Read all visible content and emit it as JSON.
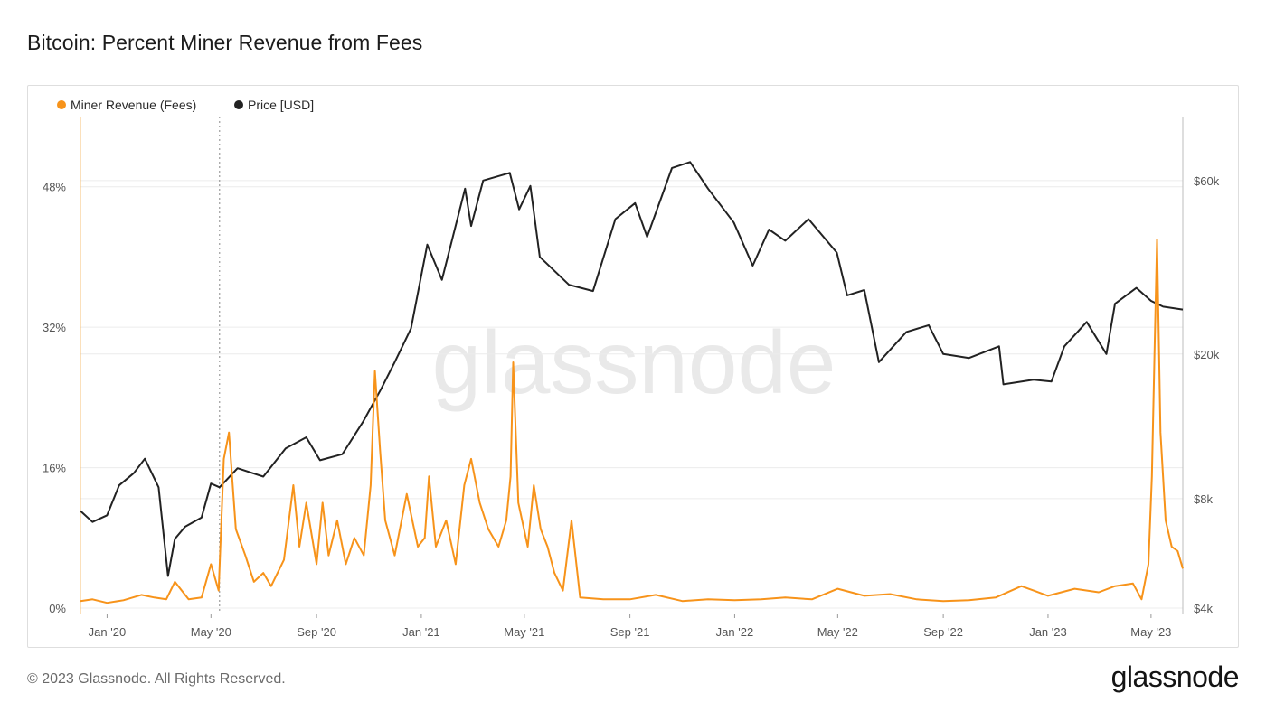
{
  "header": {
    "title": "Bitcoin: Percent Miner Revenue from Fees"
  },
  "footer": {
    "copyright": "© 2023 Glassnode. All Rights Reserved.",
    "brand": "glassnode"
  },
  "watermark": "glassnode",
  "colors": {
    "fees": "#f7931a",
    "price": "#222222",
    "grid": "#ececec",
    "axis": "#999999",
    "marker": "#888888"
  },
  "chart_data": {
    "type": "line",
    "title": "Bitcoin: Percent Miner Revenue from Fees",
    "x_start": "2019-12-01",
    "x_end": "2023-06-07",
    "x_ticks": [
      {
        "label": "Jan '20",
        "date": "2020-01-01"
      },
      {
        "label": "May '20",
        "date": "2020-05-01"
      },
      {
        "label": "Sep '20",
        "date": "2020-09-01"
      },
      {
        "label": "Jan '21",
        "date": "2021-01-01"
      },
      {
        "label": "May '21",
        "date": "2021-05-01"
      },
      {
        "label": "Sep '21",
        "date": "2021-09-01"
      },
      {
        "label": "Jan '22",
        "date": "2022-01-01"
      },
      {
        "label": "May '22",
        "date": "2022-05-01"
      },
      {
        "label": "Sep '22",
        "date": "2022-09-01"
      },
      {
        "label": "Jan '23",
        "date": "2023-01-01"
      },
      {
        "label": "May '23",
        "date": "2023-05-01"
      }
    ],
    "y_left": {
      "min": 0,
      "max": 56,
      "scale": "linear",
      "ticks": [
        {
          "label": "0%",
          "value": 0
        },
        {
          "label": "16%",
          "value": 16
        },
        {
          "label": "32%",
          "value": 32
        },
        {
          "label": "48%",
          "value": 48
        }
      ]
    },
    "y_right": {
      "min": 4000,
      "max": 90000,
      "scale": "log",
      "ticks": [
        {
          "label": "$4k",
          "value": 4000
        },
        {
          "label": "$8k",
          "value": 8000
        },
        {
          "label": "$20k",
          "value": 20000
        },
        {
          "label": "$60k",
          "value": 60000
        }
      ]
    },
    "grid": true,
    "legend_position": "top-left",
    "marker_line_date": "2020-05-11",
    "series": [
      {
        "name": "Miner Revenue (Fees)",
        "axis": "left",
        "color": "#f7931a",
        "points": [
          [
            "2019-12-01",
            0.8
          ],
          [
            "2019-12-15",
            1.0
          ],
          [
            "2020-01-01",
            0.6
          ],
          [
            "2020-01-20",
            0.9
          ],
          [
            "2020-02-10",
            1.5
          ],
          [
            "2020-02-25",
            1.2
          ],
          [
            "2020-03-10",
            1.0
          ],
          [
            "2020-03-20",
            3.0
          ],
          [
            "2020-03-28",
            2.0
          ],
          [
            "2020-04-05",
            1.0
          ],
          [
            "2020-04-20",
            1.2
          ],
          [
            "2020-05-01",
            5.0
          ],
          [
            "2020-05-10",
            2.0
          ],
          [
            "2020-05-16",
            17.0
          ],
          [
            "2020-05-22",
            20.0
          ],
          [
            "2020-05-30",
            9.0
          ],
          [
            "2020-06-10",
            6.0
          ],
          [
            "2020-06-20",
            3.0
          ],
          [
            "2020-07-01",
            4.0
          ],
          [
            "2020-07-10",
            2.5
          ],
          [
            "2020-07-25",
            5.5
          ],
          [
            "2020-08-05",
            14.0
          ],
          [
            "2020-08-12",
            7.0
          ],
          [
            "2020-08-20",
            12.0
          ],
          [
            "2020-09-01",
            5.0
          ],
          [
            "2020-09-08",
            12.0
          ],
          [
            "2020-09-15",
            6.0
          ],
          [
            "2020-09-25",
            10.0
          ],
          [
            "2020-10-05",
            5.0
          ],
          [
            "2020-10-15",
            8.0
          ],
          [
            "2020-10-26",
            6.0
          ],
          [
            "2020-11-03",
            14.0
          ],
          [
            "2020-11-08",
            27.0
          ],
          [
            "2020-11-14",
            18.0
          ],
          [
            "2020-11-20",
            10.0
          ],
          [
            "2020-12-01",
            6.0
          ],
          [
            "2020-12-15",
            13.0
          ],
          [
            "2020-12-28",
            7.0
          ],
          [
            "2021-01-05",
            8.0
          ],
          [
            "2021-01-10",
            15.0
          ],
          [
            "2021-01-18",
            7.0
          ],
          [
            "2021-01-30",
            10.0
          ],
          [
            "2021-02-10",
            5.0
          ],
          [
            "2021-02-20",
            14.0
          ],
          [
            "2021-02-28",
            17.0
          ],
          [
            "2021-03-10",
            12.0
          ],
          [
            "2021-03-20",
            9.0
          ],
          [
            "2021-04-01",
            7.0
          ],
          [
            "2021-04-10",
            10.0
          ],
          [
            "2021-04-15",
            15.0
          ],
          [
            "2021-04-18",
            28.0
          ],
          [
            "2021-04-24",
            12.0
          ],
          [
            "2021-05-05",
            7.0
          ],
          [
            "2021-05-12",
            14.0
          ],
          [
            "2021-05-20",
            9.0
          ],
          [
            "2021-05-28",
            7.0
          ],
          [
            "2021-06-05",
            4.0
          ],
          [
            "2021-06-15",
            2.0
          ],
          [
            "2021-06-25",
            10.0
          ],
          [
            "2021-07-05",
            1.2
          ],
          [
            "2021-08-01",
            1.0
          ],
          [
            "2021-09-01",
            1.0
          ],
          [
            "2021-10-01",
            1.5
          ],
          [
            "2021-11-01",
            0.8
          ],
          [
            "2021-12-01",
            1.0
          ],
          [
            "2022-01-01",
            0.9
          ],
          [
            "2022-02-01",
            1.0
          ],
          [
            "2022-03-01",
            1.2
          ],
          [
            "2022-04-01",
            1.0
          ],
          [
            "2022-05-01",
            2.2
          ],
          [
            "2022-06-01",
            1.4
          ],
          [
            "2022-07-01",
            1.6
          ],
          [
            "2022-08-01",
            1.0
          ],
          [
            "2022-09-01",
            0.8
          ],
          [
            "2022-10-01",
            0.9
          ],
          [
            "2022-11-01",
            1.2
          ],
          [
            "2022-12-01",
            2.5
          ],
          [
            "2023-01-01",
            1.4
          ],
          [
            "2023-02-01",
            2.2
          ],
          [
            "2023-03-01",
            1.8
          ],
          [
            "2023-03-20",
            2.5
          ],
          [
            "2023-04-10",
            2.8
          ],
          [
            "2023-04-20",
            1.0
          ],
          [
            "2023-04-28",
            5.0
          ],
          [
            "2023-05-02",
            15.0
          ],
          [
            "2023-05-05",
            29.0
          ],
          [
            "2023-05-08",
            42.0
          ],
          [
            "2023-05-12",
            20.0
          ],
          [
            "2023-05-18",
            10.0
          ],
          [
            "2023-05-25",
            7.0
          ],
          [
            "2023-06-01",
            6.5
          ],
          [
            "2023-06-07",
            4.5
          ]
        ]
      },
      {
        "name": "Price [USD]",
        "axis": "right",
        "color": "#222222",
        "points": [
          [
            "2019-12-01",
            7400
          ],
          [
            "2019-12-15",
            6900
          ],
          [
            "2020-01-01",
            7200
          ],
          [
            "2020-01-15",
            8700
          ],
          [
            "2020-02-01",
            9400
          ],
          [
            "2020-02-14",
            10300
          ],
          [
            "2020-03-01",
            8600
          ],
          [
            "2020-03-12",
            4900
          ],
          [
            "2020-03-20",
            6200
          ],
          [
            "2020-04-01",
            6700
          ],
          [
            "2020-04-20",
            7100
          ],
          [
            "2020-05-01",
            8800
          ],
          [
            "2020-05-11",
            8600
          ],
          [
            "2020-06-01",
            9700
          ],
          [
            "2020-07-01",
            9200
          ],
          [
            "2020-07-27",
            11000
          ],
          [
            "2020-08-20",
            11800
          ],
          [
            "2020-09-05",
            10200
          ],
          [
            "2020-10-01",
            10600
          ],
          [
            "2020-10-25",
            13000
          ],
          [
            "2020-11-15",
            16000
          ],
          [
            "2020-12-01",
            19000
          ],
          [
            "2020-12-20",
            23500
          ],
          [
            "2021-01-08",
            40000
          ],
          [
            "2021-01-25",
            32000
          ],
          [
            "2021-02-21",
            57000
          ],
          [
            "2021-02-28",
            45000
          ],
          [
            "2021-03-14",
            60000
          ],
          [
            "2021-04-14",
            63000
          ],
          [
            "2021-04-25",
            50000
          ],
          [
            "2021-05-08",
            58000
          ],
          [
            "2021-05-19",
            37000
          ],
          [
            "2021-06-22",
            31000
          ],
          [
            "2021-07-20",
            29800
          ],
          [
            "2021-08-15",
            47000
          ],
          [
            "2021-09-07",
            52000
          ],
          [
            "2021-09-21",
            42000
          ],
          [
            "2021-10-20",
            65000
          ],
          [
            "2021-11-10",
            67500
          ],
          [
            "2021-12-01",
            57000
          ],
          [
            "2021-12-31",
            46000
          ],
          [
            "2022-01-22",
            35000
          ],
          [
            "2022-02-10",
            44000
          ],
          [
            "2022-03-01",
            41000
          ],
          [
            "2022-03-28",
            47000
          ],
          [
            "2022-04-30",
            38000
          ],
          [
            "2022-05-12",
            29000
          ],
          [
            "2022-06-01",
            30000
          ],
          [
            "2022-06-18",
            19000
          ],
          [
            "2022-07-20",
            23000
          ],
          [
            "2022-08-15",
            24000
          ],
          [
            "2022-09-01",
            20000
          ],
          [
            "2022-10-01",
            19500
          ],
          [
            "2022-11-05",
            21000
          ],
          [
            "2022-11-10",
            16500
          ],
          [
            "2022-12-15",
            17000
          ],
          [
            "2023-01-05",
            16800
          ],
          [
            "2023-01-20",
            21000
          ],
          [
            "2023-02-15",
            24500
          ],
          [
            "2023-03-10",
            20000
          ],
          [
            "2023-03-20",
            27500
          ],
          [
            "2023-04-14",
            30400
          ],
          [
            "2023-05-01",
            28000
          ],
          [
            "2023-05-15",
            27000
          ],
          [
            "2023-06-07",
            26500
          ]
        ]
      }
    ]
  }
}
